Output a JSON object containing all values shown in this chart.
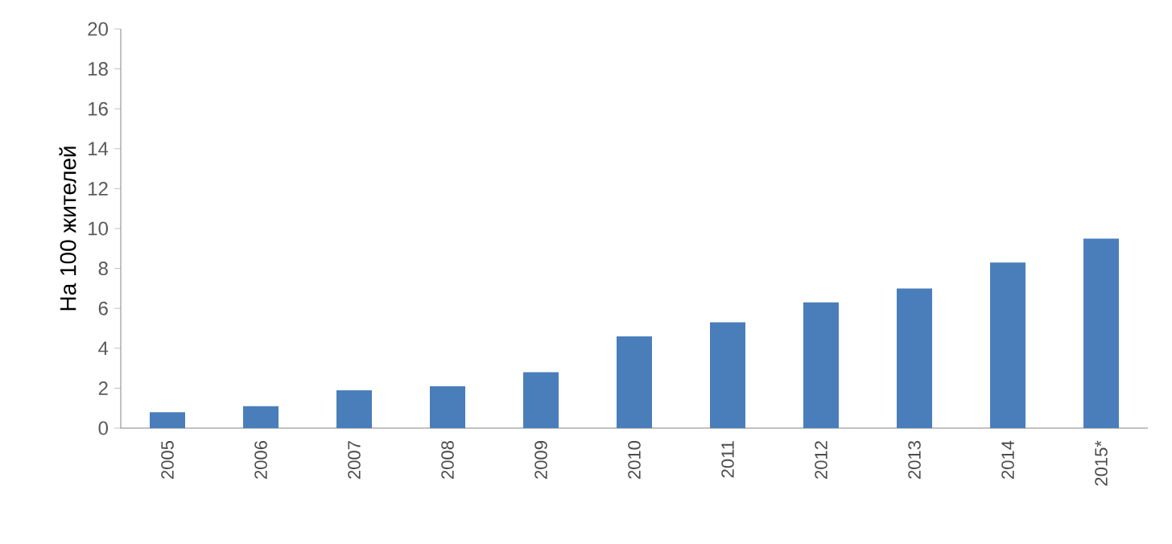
{
  "chart_data": {
    "type": "bar",
    "ylabel": "На 100 жителей",
    "categories": [
      "2005",
      "2006",
      "2007",
      "2008",
      "2009",
      "2010",
      "2011",
      "2012",
      "2013",
      "2014",
      "2015*"
    ],
    "values": [
      0.8,
      1.1,
      1.9,
      2.1,
      2.8,
      4.6,
      5.3,
      6.3,
      7.0,
      8.3,
      9.5
    ],
    "color": "#4a7ebb",
    "ylim": [
      0,
      20
    ],
    "yticks": [
      0,
      2,
      4,
      6,
      8,
      10,
      12,
      14,
      16,
      18,
      20
    ],
    "grid": false
  }
}
